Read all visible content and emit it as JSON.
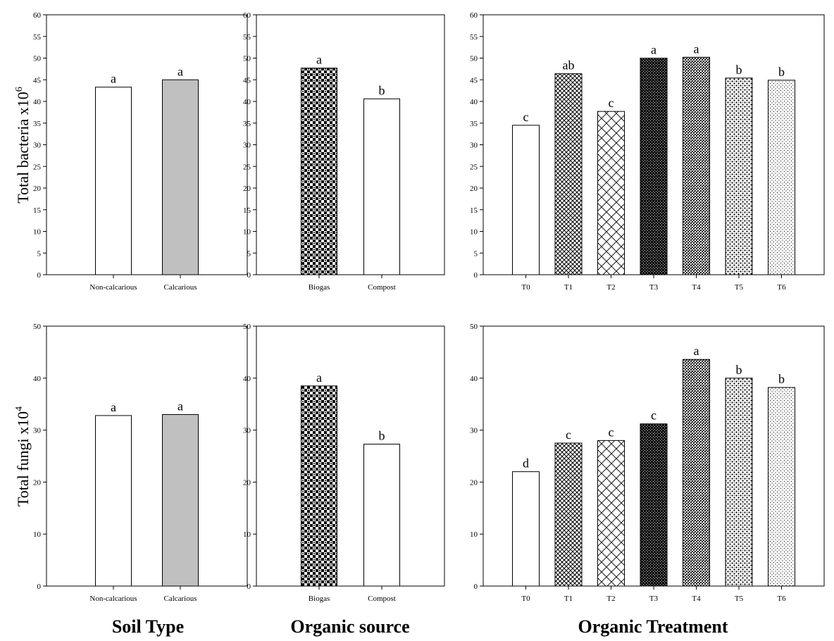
{
  "ylabels": {
    "bacteria": "Total bacteria x10",
    "bacteria_exp": "6",
    "fungi": "Total fungi x10",
    "fungi_exp": "4"
  },
  "group_titles": {
    "soil": "Soil Type",
    "source": "Organic source",
    "treatment": "Organic Treatment"
  },
  "chart_data": [
    {
      "type": "bar",
      "categories": [
        "Non-calcarious",
        "Calcarious"
      ],
      "values": [
        43.3,
        45.0
      ],
      "labels": [
        "a",
        "a"
      ],
      "patterns": [
        "white",
        "gray"
      ],
      "ylim": [
        0,
        60
      ],
      "yticks": [
        0,
        5,
        10,
        15,
        20,
        25,
        30,
        35,
        40,
        45,
        50,
        55,
        60
      ]
    },
    {
      "type": "bar",
      "categories": [
        "Biogas",
        "Compost"
      ],
      "values": [
        47.7,
        40.6
      ],
      "labels": [
        "a",
        "b"
      ],
      "patterns": [
        "checker",
        "white"
      ],
      "ylim": [
        0,
        60
      ],
      "yticks": [
        0,
        5,
        10,
        15,
        20,
        25,
        30,
        35,
        40,
        45,
        50,
        55,
        60
      ]
    },
    {
      "type": "bar",
      "categories": [
        "T0",
        "T1",
        "T2",
        "T3",
        "T4",
        "T5",
        "T6"
      ],
      "values": [
        34.5,
        46.4,
        37.7,
        50.0,
        50.2,
        45.4,
        44.9
      ],
      "labels": [
        "c",
        "ab",
        "c",
        "a",
        "a",
        "b",
        "b"
      ],
      "patterns": [
        "white",
        "crosshatch",
        "bigcross",
        "dense",
        "fine",
        "dots",
        "sparse"
      ],
      "ylim": [
        0,
        60
      ],
      "yticks": [
        0,
        5,
        10,
        15,
        20,
        25,
        30,
        35,
        40,
        45,
        50,
        55,
        60
      ]
    },
    {
      "type": "bar",
      "categories": [
        "Non-calcarious",
        "Calcarious"
      ],
      "values": [
        32.8,
        33.0
      ],
      "labels": [
        "a",
        "a"
      ],
      "patterns": [
        "white",
        "gray"
      ],
      "ylim": [
        0,
        50
      ],
      "yticks": [
        0,
        10,
        20,
        30,
        40,
        50
      ]
    },
    {
      "type": "bar",
      "categories": [
        "Biogas",
        "Compost"
      ],
      "values": [
        38.5,
        27.3
      ],
      "labels": [
        "a",
        "b"
      ],
      "patterns": [
        "checker",
        "white"
      ],
      "ylim": [
        0,
        50
      ],
      "yticks": [
        0,
        10,
        20,
        30,
        40,
        50
      ]
    },
    {
      "type": "bar",
      "categories": [
        "T0",
        "T1",
        "T2",
        "T3",
        "T4",
        "T5",
        "T6"
      ],
      "values": [
        22.0,
        27.5,
        28.0,
        31.2,
        43.6,
        40.0,
        38.2
      ],
      "labels": [
        "d",
        "c",
        "c",
        "c",
        "a",
        "b",
        "b"
      ],
      "patterns": [
        "white",
        "crosshatch",
        "bigcross",
        "dense",
        "fine",
        "dots",
        "sparse"
      ],
      "ylim": [
        0,
        50
      ],
      "yticks": [
        0,
        10,
        20,
        30,
        40,
        50
      ]
    }
  ]
}
